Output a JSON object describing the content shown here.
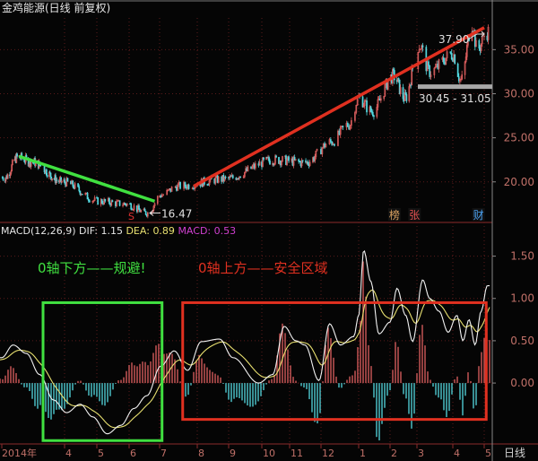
{
  "window": {
    "title": "金鸡能源(日线 前复权)"
  },
  "colors": {
    "background": "#050505",
    "up": "#e06060",
    "down": "#54d8e0",
    "axis_text": "#c07068",
    "grid": "#5a1a1a",
    "dif": "#f2f2f2",
    "dea": "#e8e070",
    "macd": "#d040d0",
    "green_mark": "#40e040",
    "red_mark": "#e03020",
    "gray_band": "#a8a8a8"
  },
  "chart_data": [
    {
      "type": "candlestick",
      "title": "金鸡能源(日线 前复权)",
      "y_ticks": [
        "35.00",
        "30.00",
        "25.00",
        "20.00"
      ],
      "ylim": [
        15.5,
        38.8
      ],
      "x_ticks": [
        "2014年",
        "4",
        "5",
        "6",
        "7",
        "8",
        "9",
        "10",
        "11",
        "12",
        "1",
        "2",
        "3",
        "4",
        "5"
      ],
      "period_label": "日线",
      "grid": true,
      "price_path": [
        {
          "date": "2014-01-06",
          "close": 20.5
        },
        {
          "date": "2014-01-25",
          "close": 22.8
        },
        {
          "date": "2014-02-14",
          "close": 22.3
        },
        {
          "date": "2014-03-29",
          "close": 20.0
        },
        {
          "date": "2014-05-03",
          "close": 17.8
        },
        {
          "date": "2014-05-28",
          "close": 17.5
        },
        {
          "date": "2014-06-20",
          "close": 16.47
        },
        {
          "date": "2014-07-02",
          "close": 18.5
        },
        {
          "date": "2014-07-16",
          "close": 19.5
        },
        {
          "date": "2014-08-27",
          "close": 20.3
        },
        {
          "date": "2014-10-16",
          "close": 22.5
        },
        {
          "date": "2014-11-17",
          "close": 22.2
        },
        {
          "date": "2014-12-09",
          "close": 24.5
        },
        {
          "date": "2014-12-24",
          "close": 26.5
        },
        {
          "date": "2015-01-01",
          "close": 29.5
        },
        {
          "date": "2015-01-14",
          "close": 28.0
        },
        {
          "date": "2015-02-05",
          "close": 32.0
        },
        {
          "date": "2015-02-18",
          "close": 29.5
        },
        {
          "date": "2015-03-03",
          "close": 35.5
        },
        {
          "date": "2015-03-12",
          "close": 32.5
        },
        {
          "date": "2015-04-01",
          "close": 34.5
        },
        {
          "date": "2015-04-09",
          "close": 31.5
        },
        {
          "date": "2015-04-20",
          "close": 37.9
        },
        {
          "date": "2015-04-25",
          "close": 35.0
        },
        {
          "date": "2015-05-04",
          "close": 37.0
        }
      ],
      "annotations": {
        "high_label": "37.90",
        "low_label": "16.47",
        "range_label": "30.45 - 31.05",
        "range_band": [
          30.45,
          31.05
        ],
        "s_marker": "S",
        "event_markers": [
          {
            "label": "榜",
            "color": "#d8a060",
            "date": "2015-01-31"
          },
          {
            "label": "张",
            "color": "#e05050",
            "date": "2015-02-23"
          },
          {
            "label": "财",
            "color": "#4aa0f0",
            "date": "2015-04-21"
          }
        ],
        "green_trendline": [
          {
            "date": "2014-01-27",
            "price": 22.9
          },
          {
            "date": "2014-06-27",
            "price": 17.8
          }
        ],
        "red_trendline": [
          {
            "date": "2014-07-29",
            "price": 19.5
          },
          {
            "date": "2015-05-01",
            "price": 37.5
          }
        ]
      }
    },
    {
      "type": "line",
      "title": "MACD(12,26,9)",
      "legend": [
        {
          "name": "DIF",
          "value": "1.15"
        },
        {
          "name": "DEA",
          "value": "0.89"
        },
        {
          "name": "MACD",
          "value": "0.53"
        }
      ],
      "y_ticks": [
        "1.50",
        "1.00",
        "0.50",
        "0.00"
      ],
      "ylim": [
        -0.72,
        1.75
      ],
      "dif_path": [
        {
          "date": "2014-01-01",
          "value": 0.3
        },
        {
          "date": "2014-01-18",
          "value": 0.45
        },
        {
          "date": "2014-02-07",
          "value": 0.35
        },
        {
          "date": "2014-02-27",
          "value": 0.1
        },
        {
          "date": "2014-03-16",
          "value": -0.2
        },
        {
          "date": "2014-04-03",
          "value": -0.35
        },
        {
          "date": "2014-04-16",
          "value": -0.25
        },
        {
          "date": "2014-04-28",
          "value": -0.4
        },
        {
          "date": "2014-05-11",
          "value": -0.6
        },
        {
          "date": "2014-05-24",
          "value": -0.5
        },
        {
          "date": "2014-06-06",
          "value": -0.3
        },
        {
          "date": "2014-06-19",
          "value": -0.15
        },
        {
          "date": "2014-07-02",
          "value": 0.2
        },
        {
          "date": "2014-07-13",
          "value": 0.38
        },
        {
          "date": "2014-07-24",
          "value": 0.15
        },
        {
          "date": "2014-08-05",
          "value": 0.49
        },
        {
          "date": "2014-08-23",
          "value": 0.52
        },
        {
          "date": "2014-09-05",
          "value": 0.3
        },
        {
          "date": "2014-09-29",
          "value": 0.0
        },
        {
          "date": "2014-10-13",
          "value": 0.1
        },
        {
          "date": "2014-10-26",
          "value": 0.67
        },
        {
          "date": "2014-11-07",
          "value": 0.5
        },
        {
          "date": "2014-11-16",
          "value": 0.45
        },
        {
          "date": "2014-11-30",
          "value": 0.03
        },
        {
          "date": "2014-12-08",
          "value": 0.7
        },
        {
          "date": "2014-12-17",
          "value": 0.45
        },
        {
          "date": "2014-12-28",
          "value": 0.55
        },
        {
          "date": "2015-01-01",
          "value": 0.8
        },
        {
          "date": "2015-01-06",
          "value": 1.57
        },
        {
          "date": "2015-01-13",
          "value": 1.2
        },
        {
          "date": "2015-01-21",
          "value": 0.58
        },
        {
          "date": "2015-02-01",
          "value": 0.72
        },
        {
          "date": "2015-02-09",
          "value": 1.12
        },
        {
          "date": "2015-02-19",
          "value": 0.8
        },
        {
          "date": "2015-02-27",
          "value": 0.49
        },
        {
          "date": "2015-03-06",
          "value": 1.22
        },
        {
          "date": "2015-03-12",
          "value": 1.0
        },
        {
          "date": "2015-03-20",
          "value": 0.85
        },
        {
          "date": "2015-03-28",
          "value": 0.6
        },
        {
          "date": "2015-04-05",
          "value": 0.8
        },
        {
          "date": "2015-04-11",
          "value": 0.5
        },
        {
          "date": "2015-04-17",
          "value": 0.75
        },
        {
          "date": "2015-04-23",
          "value": 0.45
        },
        {
          "date": "2015-04-29",
          "value": 0.85
        },
        {
          "date": "2015-05-04",
          "value": 1.15
        }
      ],
      "annotations": {
        "below_zero_text": "0轴下方——规避!",
        "above_zero_text": "0轴上方——安全区域",
        "green_box": {
          "from": "2014-03-01",
          "to": "2014-07-03",
          "value_range": [
            -0.68,
            0.95
          ]
        },
        "red_box": {
          "from": "2014-07-20",
          "to": "2015-05-03",
          "value_range": [
            -0.43,
            0.95
          ]
        }
      }
    }
  ]
}
